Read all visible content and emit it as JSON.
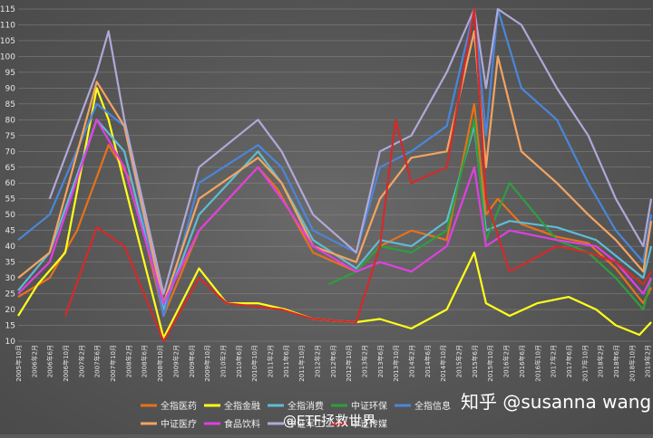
{
  "chart_data": {
    "type": "line",
    "title": "",
    "xlabel": "",
    "ylabel": "",
    "ylim": [
      10,
      115
    ],
    "yticks": [
      10,
      15,
      20,
      25,
      30,
      35,
      40,
      45,
      50,
      55,
      60,
      65,
      70,
      75,
      80,
      85,
      90,
      95,
      100,
      105,
      110,
      115
    ],
    "x_range": [
      "2005-10",
      "2019-03"
    ],
    "x_tick_labels": [
      "2005年10月",
      "2006年2月",
      "2006年6月",
      "2006年10月",
      "2007年2月",
      "2007年6月",
      "2007年10月",
      "2008年2月",
      "2008年6月",
      "2008年10月",
      "2009年2月",
      "2009年6月",
      "2009年10月",
      "2010年2月",
      "2010年6月",
      "2010年10月",
      "2011年2月",
      "2011年6月",
      "2011年10月",
      "2012年2月",
      "2012年6月",
      "2012年10月",
      "2013年2月",
      "2013年6月",
      "2013年10月",
      "2014年2月",
      "2014年6月",
      "2014年10月",
      "2015年2月",
      "2015年6月",
      "2015年10月",
      "2016年2月",
      "2016年6月",
      "2016年10月",
      "2017年2月",
      "2017年6月",
      "2017年10月",
      "2018年2月",
      "2018年6月",
      "2018年10月",
      "2019年2月"
    ],
    "grid": true,
    "legend_position": "bottom",
    "series": [
      {
        "name": "全指医药",
        "color": "#e8711a",
        "x": [
          "2005-10",
          "2006-06",
          "2007-01",
          "2007-09",
          "2008-03",
          "2008-11",
          "2009-08",
          "2010-11",
          "2011-04",
          "2012-01",
          "2012-12",
          "2013-06",
          "2014-02",
          "2014-11",
          "2015-06",
          "2015-09",
          "2015-12",
          "2016-06",
          "2017-03",
          "2017-11",
          "2018-06",
          "2019-01",
          "2019-03"
        ],
        "values": [
          24,
          30,
          45,
          72,
          60,
          18,
          45,
          65,
          58,
          38,
          32,
          40,
          45,
          42,
          85,
          50,
          55,
          47,
          43,
          41,
          33,
          22,
          27
        ]
      },
      {
        "name": "全指金融",
        "color": "#ffff1a",
        "x": [
          "2005-10",
          "2006-03",
          "2006-10",
          "2007-06",
          "2007-09",
          "2008-03",
          "2008-11",
          "2009-08",
          "2010-03",
          "2010-11",
          "2011-06",
          "2012-01",
          "2012-12",
          "2013-06",
          "2014-02",
          "2014-11",
          "2015-06",
          "2015-09",
          "2016-03",
          "2016-10",
          "2017-06",
          "2018-01",
          "2018-06",
          "2018-12",
          "2019-03"
        ],
        "values": [
          18,
          28,
          38,
          90,
          80,
          50,
          11,
          33,
          22,
          22,
          20,
          17,
          16,
          17,
          14,
          20,
          38,
          22,
          18,
          22,
          24,
          20,
          15,
          12,
          16
        ]
      },
      {
        "name": "全指消费",
        "color": "#5fbcd3",
        "x": [
          "2005-10",
          "2006-06",
          "2007-06",
          "2008-01",
          "2008-11",
          "2009-08",
          "2010-11",
          "2011-05",
          "2012-01",
          "2012-12",
          "2013-06",
          "2014-02",
          "2014-11",
          "2015-06",
          "2015-09",
          "2016-03",
          "2017-03",
          "2018-01",
          "2018-06",
          "2019-01",
          "2019-03"
        ],
        "values": [
          26,
          38,
          80,
          70,
          20,
          50,
          70,
          60,
          42,
          33,
          42,
          40,
          48,
          78,
          45,
          48,
          46,
          42,
          37,
          30,
          40
        ]
      },
      {
        "name": "中证环保",
        "color": "#2e9e3e",
        "x": [
          "2012-05",
          "2012-12",
          "2013-06",
          "2014-02",
          "2014-11",
          "2015-06",
          "2015-09",
          "2016-03",
          "2017-03",
          "2017-11",
          "2018-06",
          "2019-01",
          "2019-03"
        ],
        "values": [
          28,
          32,
          40,
          38,
          45,
          80,
          42,
          60,
          42,
          38,
          30,
          20,
          30
        ]
      },
      {
        "name": "全指信息",
        "color": "#4a86d9",
        "x": [
          "2005-10",
          "2006-06",
          "2007-06",
          "2008-01",
          "2008-11",
          "2009-08",
          "2010-11",
          "2011-05",
          "2012-01",
          "2012-12",
          "2013-06",
          "2014-02",
          "2014-11",
          "2015-06",
          "2015-09",
          "2015-12",
          "2016-06",
          "2017-03",
          "2017-11",
          "2018-06",
          "2019-01",
          "2019-03"
        ],
        "values": [
          42,
          50,
          85,
          78,
          18,
          60,
          72,
          65,
          45,
          38,
          65,
          70,
          78,
          115,
          75,
          115,
          90,
          80,
          60,
          45,
          35,
          50
        ]
      },
      {
        "name": "中证医疗",
        "color": "#f4a460",
        "x": [
          "2005-10",
          "2006-06",
          "2007-06",
          "2008-01",
          "2008-11",
          "2009-08",
          "2010-11",
          "2011-05",
          "2012-01",
          "2012-12",
          "2013-06",
          "2014-02",
          "2014-11",
          "2015-06",
          "2015-09",
          "2015-12",
          "2016-06",
          "2017-03",
          "2017-11",
          "2018-06",
          "2019-01",
          "2019-03"
        ],
        "values": [
          30,
          38,
          92,
          78,
          22,
          55,
          68,
          60,
          40,
          35,
          55,
          68,
          70,
          108,
          65,
          100,
          70,
          60,
          50,
          42,
          32,
          48
        ]
      },
      {
        "name": "食品饮料",
        "color": "#e040e0",
        "x": [
          "2005-10",
          "2006-06",
          "2007-06",
          "2008-01",
          "2008-11",
          "2009-08",
          "2010-11",
          "2011-05",
          "2012-01",
          "2012-12",
          "2013-06",
          "2014-02",
          "2014-11",
          "2015-06",
          "2015-09",
          "2016-03",
          "2017-03",
          "2018-01",
          "2018-06",
          "2019-01",
          "2019-03"
        ],
        "values": [
          25,
          35,
          80,
          65,
          22,
          45,
          65,
          55,
          40,
          32,
          35,
          32,
          40,
          65,
          40,
          45,
          42,
          40,
          35,
          25,
          30
        ]
      },
      {
        "name": "中证军工",
        "color": "#b0a8d8",
        "x": [
          "2006-06",
          "2007-06",
          "2007-09",
          "2008-01",
          "2008-11",
          "2009-08",
          "2010-11",
          "2011-05",
          "2012-01",
          "2012-12",
          "2013-06",
          "2014-02",
          "2014-11",
          "2015-06",
          "2015-09",
          "2015-12",
          "2016-06",
          "2017-03",
          "2017-11",
          "2018-06",
          "2019-01",
          "2019-03"
        ],
        "values": [
          55,
          95,
          108,
          80,
          25,
          65,
          80,
          70,
          50,
          38,
          70,
          75,
          95,
          115,
          90,
          115,
          110,
          90,
          75,
          55,
          40,
          55
        ]
      },
      {
        "name": "中证传媒",
        "color": "#d42a2a",
        "x": [
          "2006-10",
          "2007-06",
          "2008-01",
          "2008-11",
          "2009-08",
          "2010-03",
          "2011-05",
          "2012-01",
          "2012-12",
          "2013-06",
          "2013-10",
          "2014-02",
          "2014-11",
          "2015-06",
          "2015-09",
          "2016-03",
          "2017-03",
          "2017-11",
          "2018-06",
          "2019-01",
          "2019-03"
        ],
        "values": [
          18,
          46,
          40,
          10,
          30,
          22,
          20,
          17,
          16,
          40,
          80,
          60,
          65,
          115,
          55,
          32,
          40,
          38,
          35,
          28,
          32
        ]
      }
    ]
  },
  "watermarks": {
    "top": "知乎 @susanna wang",
    "bottom": "@ETF拯救世界"
  }
}
